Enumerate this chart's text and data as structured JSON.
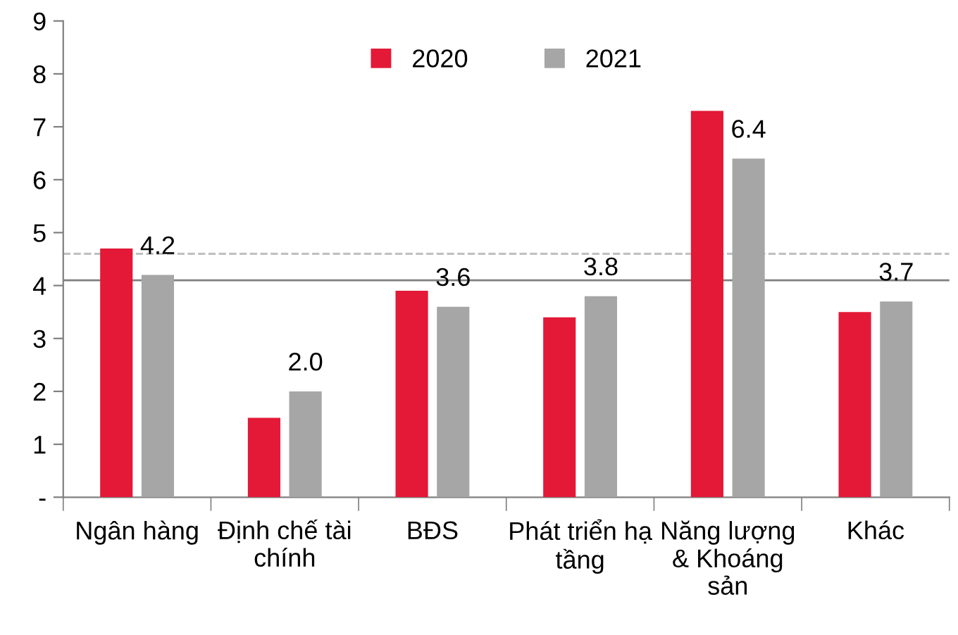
{
  "chart_data": {
    "type": "bar",
    "categories": [
      "Ngân hàng",
      "Định chế tài\nchính",
      "BĐS",
      "Phát triển hạ\ntầng",
      "Năng lượng\n& Khoáng\nsản",
      "Khác"
    ],
    "series": [
      {
        "name": "2020",
        "color": "#e31937",
        "values": [
          4.7,
          1.5,
          3.9,
          3.4,
          7.3,
          3.5
        ]
      },
      {
        "name": "2021",
        "color": "#a6a6a6",
        "values": [
          4.2,
          2.0,
          3.6,
          3.8,
          6.4,
          3.7
        ],
        "value_labels": [
          "4.2",
          "2.0",
          "3.6",
          "3.8",
          "6.4",
          "3.7"
        ]
      }
    ],
    "ylim": [
      0,
      9
    ],
    "yticks": [
      {
        "value": 0,
        "label": "-"
      },
      1,
      2,
      3,
      4,
      5,
      6,
      7,
      8,
      9
    ],
    "ref_lines": [
      {
        "axis": "y",
        "value": 4.6,
        "color": "#bfbfbf",
        "line_style": "dashed"
      },
      {
        "axis": "y",
        "value": 4.1,
        "color": "#808080",
        "line_style": "solid"
      }
    ],
    "grid": false,
    "legend": "top"
  }
}
